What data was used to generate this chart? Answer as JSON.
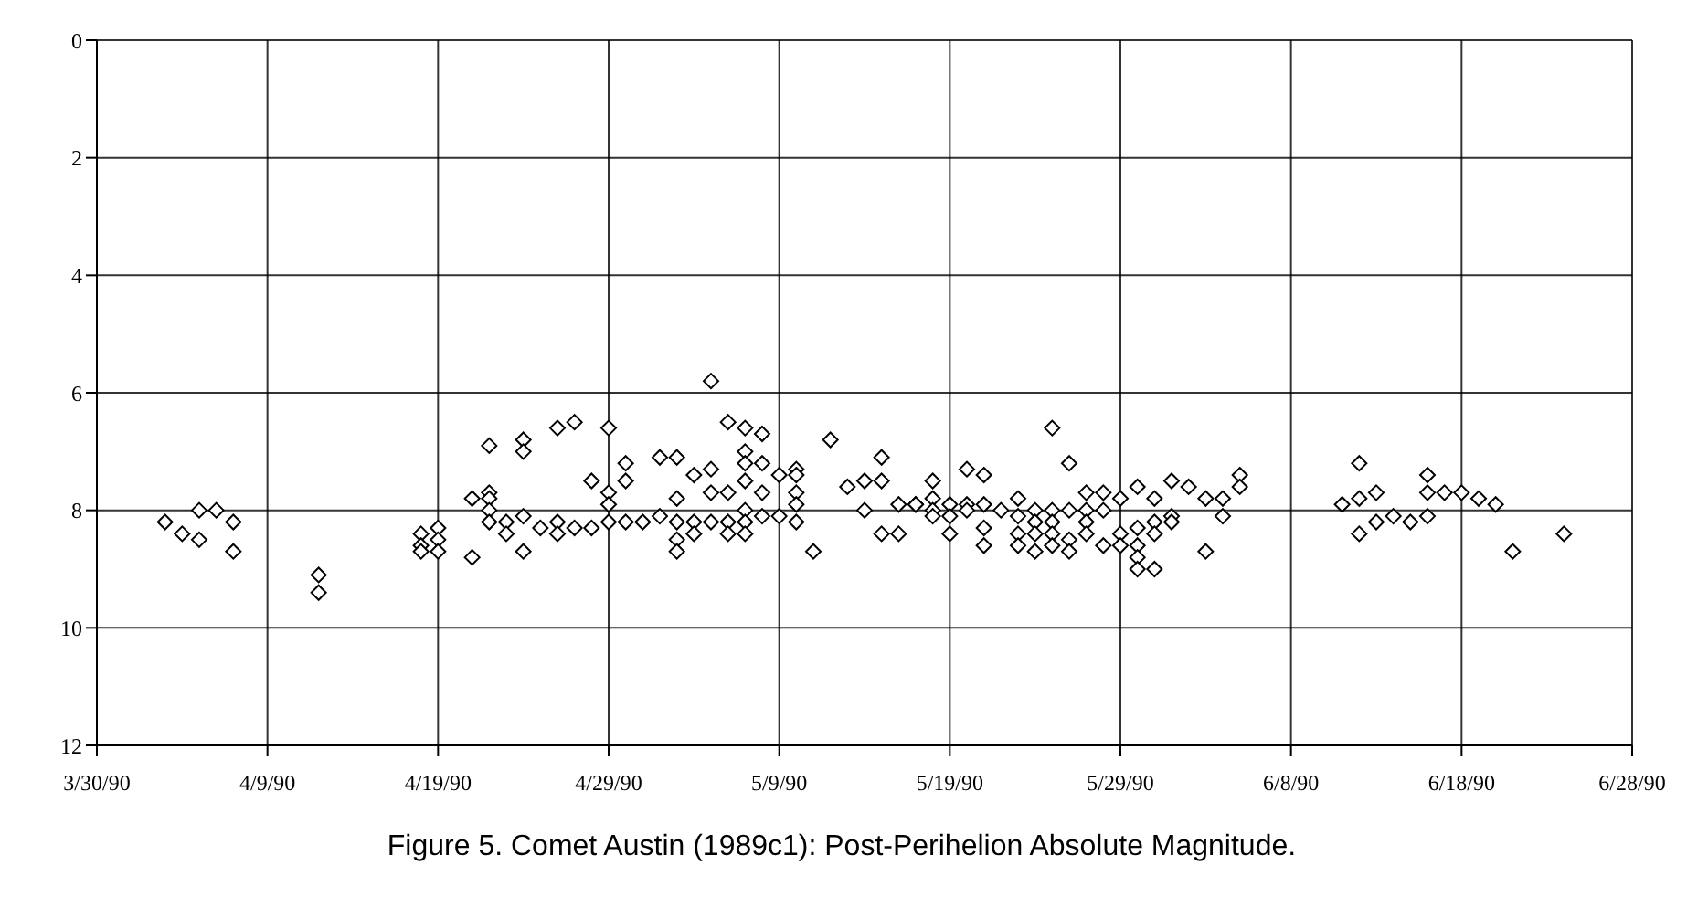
{
  "chart_data": {
    "type": "scatter",
    "title": "Figure 5. Comet Austin (1989c1): Post-Perihelion Absolute Magnitude.",
    "color": "#000000",
    "marker": "diamond",
    "grid": true,
    "xlim": [
      "1990-03-30",
      "1990-06-28"
    ],
    "xticks": [
      {
        "value": "1990-03-30",
        "label": "3/30/90"
      },
      {
        "value": "1990-04-09",
        "label": "4/9/90"
      },
      {
        "value": "1990-04-19",
        "label": "4/19/90"
      },
      {
        "value": "1990-04-29",
        "label": "4/29/90"
      },
      {
        "value": "1990-05-09",
        "label": "5/9/90"
      },
      {
        "value": "1990-05-19",
        "label": "5/19/90"
      },
      {
        "value": "1990-05-29",
        "label": "5/29/90"
      },
      {
        "value": "1990-06-08",
        "label": "6/8/90"
      },
      {
        "value": "1990-06-18",
        "label": "6/18/90"
      },
      {
        "value": "1990-06-28",
        "label": "6/28/90"
      }
    ],
    "ylim": [
      12,
      0
    ],
    "yticks": [
      0,
      2,
      4,
      6,
      8,
      10,
      12
    ],
    "x": [
      "1990-04-03",
      "1990-04-04",
      "1990-04-05",
      "1990-04-05",
      "1990-04-06",
      "1990-04-07",
      "1990-04-07",
      "1990-04-12",
      "1990-04-12",
      "1990-04-18",
      "1990-04-18",
      "1990-04-18",
      "1990-04-19",
      "1990-04-19",
      "1990-04-19",
      "1990-04-21",
      "1990-04-21",
      "1990-04-22",
      "1990-04-22",
      "1990-04-22",
      "1990-04-22",
      "1990-04-22",
      "1990-04-23",
      "1990-04-23",
      "1990-04-24",
      "1990-04-24",
      "1990-04-24",
      "1990-04-24",
      "1990-04-25",
      "1990-04-26",
      "1990-04-26",
      "1990-04-26",
      "1990-04-27",
      "1990-04-27",
      "1990-04-28",
      "1990-04-28",
      "1990-04-29",
      "1990-04-29",
      "1990-04-29",
      "1990-04-29",
      "1990-04-30",
      "1990-04-30",
      "1990-04-30",
      "1990-05-01",
      "1990-05-02",
      "1990-05-02",
      "1990-05-03",
      "1990-05-03",
      "1990-05-03",
      "1990-05-03",
      "1990-05-03",
      "1990-05-04",
      "1990-05-04",
      "1990-05-04",
      "1990-05-05",
      "1990-05-05",
      "1990-05-05",
      "1990-05-05",
      "1990-05-06",
      "1990-05-06",
      "1990-05-06",
      "1990-05-06",
      "1990-05-07",
      "1990-05-07",
      "1990-05-07",
      "1990-05-07",
      "1990-05-07",
      "1990-05-07",
      "1990-05-07",
      "1990-05-08",
      "1990-05-08",
      "1990-05-08",
      "1990-05-08",
      "1990-05-09",
      "1990-05-09",
      "1990-05-10",
      "1990-05-10",
      "1990-05-10",
      "1990-05-10",
      "1990-05-10",
      "1990-05-11",
      "1990-05-12",
      "1990-05-13",
      "1990-05-14",
      "1990-05-14",
      "1990-05-15",
      "1990-05-15",
      "1990-05-15",
      "1990-05-16",
      "1990-05-16",
      "1990-05-17",
      "1990-05-17",
      "1990-05-18",
      "1990-05-18",
      "1990-05-18",
      "1990-05-18",
      "1990-05-19",
      "1990-05-19",
      "1990-05-19",
      "1990-05-20",
      "1990-05-20",
      "1990-05-20",
      "1990-05-21",
      "1990-05-21",
      "1990-05-21",
      "1990-05-21",
      "1990-05-22",
      "1990-05-23",
      "1990-05-23",
      "1990-05-23",
      "1990-05-23",
      "1990-05-24",
      "1990-05-24",
      "1990-05-24",
      "1990-05-24",
      "1990-05-25",
      "1990-05-25",
      "1990-05-25",
      "1990-05-25",
      "1990-05-25",
      "1990-05-26",
      "1990-05-26",
      "1990-05-26",
      "1990-05-26",
      "1990-05-27",
      "1990-05-27",
      "1990-05-27",
      "1990-05-27",
      "1990-05-28",
      "1990-05-28",
      "1990-05-28",
      "1990-05-29",
      "1990-05-29",
      "1990-05-29",
      "1990-05-30",
      "1990-05-30",
      "1990-05-30",
      "1990-05-30",
      "1990-05-30",
      "1990-05-31",
      "1990-05-31",
      "1990-05-31",
      "1990-05-31",
      "1990-06-01",
      "1990-06-01",
      "1990-06-01",
      "1990-06-02",
      "1990-06-03",
      "1990-06-03",
      "1990-06-04",
      "1990-06-04",
      "1990-06-05",
      "1990-06-05",
      "1990-06-11",
      "1990-06-12",
      "1990-06-12",
      "1990-06-12",
      "1990-06-13",
      "1990-06-13",
      "1990-06-14",
      "1990-06-15",
      "1990-06-16",
      "1990-06-16",
      "1990-06-16",
      "1990-06-17",
      "1990-06-18",
      "1990-06-19",
      "1990-06-20",
      "1990-06-21",
      "1990-06-24"
    ],
    "values": [
      8.2,
      8.4,
      8.5,
      8.0,
      8.0,
      8.2,
      8.7,
      9.1,
      9.4,
      8.4,
      8.6,
      8.7,
      8.3,
      8.5,
      8.7,
      7.8,
      8.8,
      6.9,
      7.7,
      7.8,
      8.0,
      8.2,
      8.2,
      8.4,
      6.8,
      7.0,
      8.1,
      8.7,
      8.3,
      6.6,
      8.2,
      8.4,
      6.5,
      8.3,
      7.5,
      8.3,
      6.6,
      7.7,
      7.9,
      8.2,
      7.2,
      7.5,
      8.2,
      8.2,
      7.1,
      8.1,
      7.1,
      7.8,
      8.2,
      8.5,
      8.7,
      7.4,
      8.2,
      8.4,
      5.8,
      7.3,
      7.7,
      8.2,
      6.5,
      7.7,
      8.2,
      8.4,
      6.6,
      7.0,
      7.2,
      7.5,
      8.0,
      8.2,
      8.4,
      6.7,
      7.2,
      7.7,
      8.1,
      7.4,
      8.1,
      7.3,
      7.4,
      7.7,
      7.9,
      8.2,
      8.7,
      6.8,
      7.6,
      7.5,
      8.0,
      7.1,
      7.5,
      8.4,
      7.9,
      8.4,
      7.9,
      7.9,
      7.5,
      7.8,
      8.0,
      8.1,
      7.9,
      8.1,
      8.4,
      7.3,
      7.9,
      8.0,
      7.4,
      7.9,
      8.3,
      8.6,
      8.0,
      7.8,
      8.1,
      8.4,
      8.6,
      8.0,
      8.2,
      8.4,
      8.7,
      6.6,
      8.0,
      8.2,
      8.4,
      8.6,
      7.2,
      8.0,
      8.5,
      8.7,
      7.7,
      8.0,
      8.2,
      8.4,
      7.7,
      8.0,
      8.6,
      7.8,
      8.4,
      8.6,
      7.6,
      8.3,
      8.6,
      8.8,
      9.0,
      7.8,
      8.2,
      8.4,
      9.0,
      7.5,
      8.1,
      8.2,
      7.6,
      7.8,
      8.7,
      7.8,
      8.1,
      7.4,
      7.6,
      7.9,
      7.2,
      7.8,
      8.4,
      7.7,
      8.2,
      8.1,
      8.2,
      7.4,
      7.7,
      8.1,
      7.7,
      7.7,
      7.8,
      7.9,
      8.7,
      8.4
    ]
  }
}
